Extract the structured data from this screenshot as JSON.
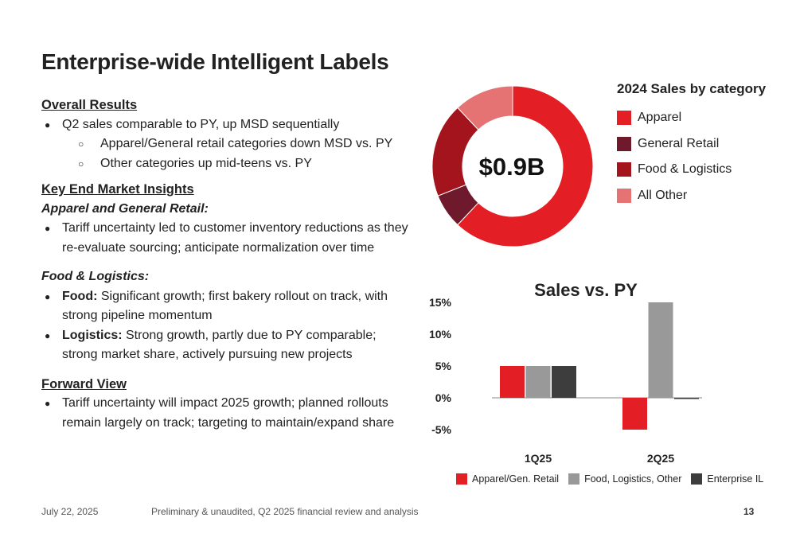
{
  "title": "Enterprise-wide Intelligent Labels",
  "overall": {
    "heading": "Overall Results",
    "b1": "Q2 sales comparable to PY, up MSD sequentially",
    "b1a": "Apparel/General retail categories down MSD vs. PY",
    "b1b": "Other categories up mid-teens vs. PY"
  },
  "key": {
    "heading": "Key End Market Insights",
    "apparel_heading": "Apparel and General Retail:",
    "apparel_b1_line1": "Tariff uncertainty led to customer inventory reductions as they",
    "apparel_b1_line2": "re-evaluate sourcing; anticipate normalization over time",
    "food_heading": "Food & Logistics:",
    "food_label": "Food:",
    "food_text_line1": " Significant growth; first bakery rollout on track, with",
    "food_text_line2": "strong pipeline momentum",
    "logistics_label": "Logistics:",
    "logistics_text_line1": " Strong growth, partly due to PY comparable;",
    "logistics_text_line2": "strong market share, actively pursuing new projects"
  },
  "forward": {
    "heading": "Forward View",
    "b1_line1": "Tariff uncertainty will impact 2025 growth; planned rollouts",
    "b1_line2": "remain largely on track; targeting to maintain/expand share"
  },
  "chart_data": [
    {
      "type": "pie",
      "title": "2024 Sales by category",
      "center_label": "$0.9B",
      "categories": [
        "Apparel",
        "General Retail",
        "Food & Logistics",
        "All Other"
      ],
      "values": [
        62,
        7,
        19,
        12
      ],
      "colors": [
        "#e31e24",
        "#6e1a2c",
        "#a3141c",
        "#e57373"
      ]
    },
    {
      "type": "bar",
      "title": "Sales vs. PY",
      "categories": [
        "1Q25",
        "2Q25"
      ],
      "series": [
        {
          "name": "Apparel/Gen. Retail",
          "values": [
            5,
            -5
          ],
          "color": "#e31e24"
        },
        {
          "name": "Food, Logistics, Other",
          "values": [
            5,
            15
          ],
          "color": "#999999"
        },
        {
          "name": "Enterprise IL",
          "values": [
            5,
            0
          ],
          "color": "#3d3d3d"
        }
      ],
      "yticks": [
        "15%",
        "10%",
        "5%",
        "0%",
        "-5%"
      ],
      "ytick_values": [
        15,
        10,
        5,
        0,
        -5
      ],
      "ylim": [
        -5,
        15
      ]
    }
  ],
  "footer": {
    "date": "July 22, 2025",
    "note": "Preliminary & unaudited, Q2 2025 financial review and analysis",
    "page": "13"
  }
}
